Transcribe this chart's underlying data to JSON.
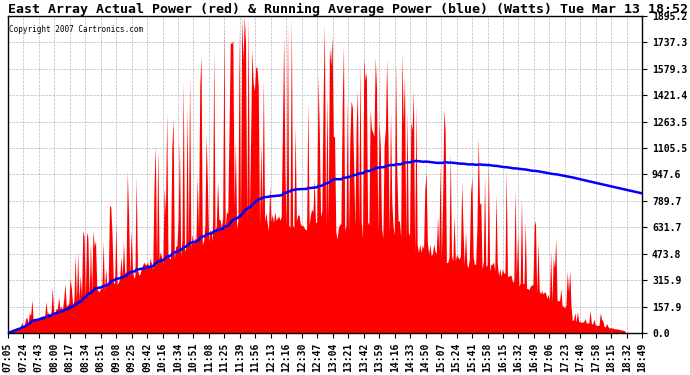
{
  "title": "East Array Actual Power (red) & Running Average Power (blue) (Watts) Tue Mar 13 18:52",
  "copyright": "Copyright 2007 Cartronics.com",
  "ymin": 0.0,
  "ymax": 1895.2,
  "yticks": [
    0.0,
    157.9,
    315.9,
    473.8,
    631.7,
    789.7,
    947.6,
    1105.5,
    1263.5,
    1421.4,
    1579.3,
    1737.3,
    1895.2
  ],
  "bg_color": "#ffffff",
  "plot_bg_color": "#ffffff",
  "bar_color": "#ff0000",
  "line_color": "#0000ff",
  "grid_color": "#888888",
  "title_fontsize": 9.5,
  "tick_fontsize": 7,
  "xtick_labels": [
    "07:05",
    "07:24",
    "07:43",
    "08:00",
    "08:17",
    "08:34",
    "08:51",
    "09:08",
    "09:25",
    "09:42",
    "10:16",
    "10:34",
    "10:51",
    "11:08",
    "11:25",
    "11:39",
    "11:56",
    "12:13",
    "12:16",
    "12:30",
    "12:47",
    "13:04",
    "13:21",
    "13:42",
    "13:59",
    "14:16",
    "14:33",
    "14:50",
    "15:07",
    "15:24",
    "15:41",
    "15:58",
    "16:15",
    "16:32",
    "16:49",
    "17:06",
    "17:23",
    "17:40",
    "17:58",
    "18:15",
    "18:32",
    "18:49"
  ]
}
